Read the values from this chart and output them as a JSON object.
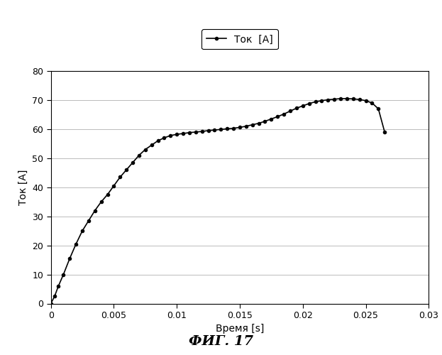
{
  "title": "",
  "xlabel": "Время [s]",
  "ylabel": "Ток [А]",
  "legend_label": "Ток  [А]",
  "caption": "ФИГ. 17",
  "xlim": [
    0,
    0.03
  ],
  "ylim": [
    0,
    80
  ],
  "xticks": [
    0,
    0.005,
    0.01,
    0.015,
    0.02,
    0.025,
    0.03
  ],
  "yticks": [
    0,
    10,
    20,
    30,
    40,
    50,
    60,
    70,
    80
  ],
  "x": [
    0.0,
    0.0003,
    0.0006,
    0.001,
    0.0015,
    0.002,
    0.0025,
    0.003,
    0.0035,
    0.004,
    0.0045,
    0.005,
    0.0055,
    0.006,
    0.0065,
    0.007,
    0.0075,
    0.008,
    0.0085,
    0.009,
    0.0095,
    0.01,
    0.0105,
    0.011,
    0.0115,
    0.012,
    0.0125,
    0.013,
    0.0135,
    0.014,
    0.0145,
    0.015,
    0.0155,
    0.016,
    0.0165,
    0.017,
    0.0175,
    0.018,
    0.0185,
    0.019,
    0.0195,
    0.02,
    0.0205,
    0.021,
    0.0215,
    0.022,
    0.0225,
    0.023,
    0.0235,
    0.024,
    0.0245,
    0.025,
    0.0255,
    0.026,
    0.0265
  ],
  "y": [
    0.0,
    2.5,
    6.0,
    10.0,
    15.5,
    20.5,
    25.0,
    28.5,
    32.0,
    35.0,
    37.5,
    40.5,
    43.5,
    46.0,
    48.5,
    51.0,
    53.0,
    54.5,
    56.0,
    57.0,
    57.8,
    58.2,
    58.5,
    58.8,
    59.0,
    59.2,
    59.5,
    59.7,
    59.9,
    60.1,
    60.3,
    60.6,
    61.0,
    61.5,
    62.0,
    62.7,
    63.5,
    64.3,
    65.2,
    66.2,
    67.2,
    68.0,
    68.8,
    69.4,
    69.8,
    70.1,
    70.3,
    70.5,
    70.5,
    70.4,
    70.2,
    69.8,
    69.0,
    67.0,
    59.0
  ],
  "line_color": "#000000",
  "marker": "o",
  "marker_size": 3,
  "line_width": 1.2,
  "bg_color": "#ffffff",
  "grid_color": "#bbbbbb",
  "legend_fontsize": 10,
  "axis_label_fontsize": 10,
  "tick_fontsize": 9,
  "caption_fontsize": 14,
  "caption_style": "italic",
  "caption_weight": "bold"
}
